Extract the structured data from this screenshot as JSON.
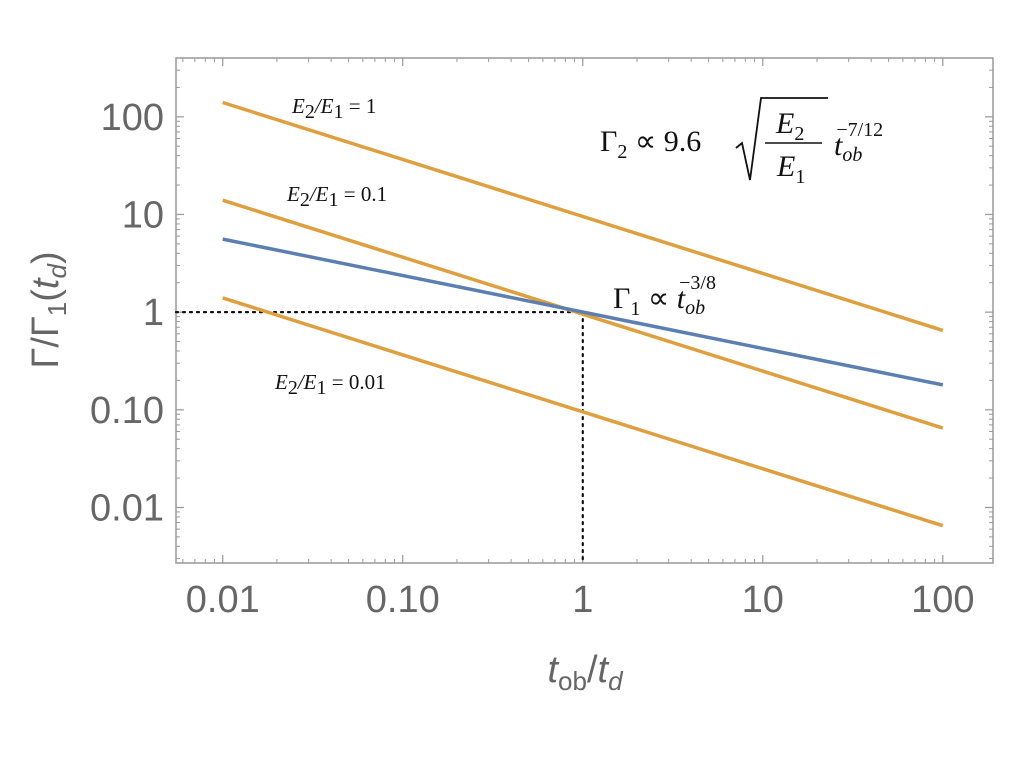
{
  "chart_data": {
    "type": "line",
    "xscale": "log",
    "yscale": "log",
    "xlabel": "t_ob/t_d",
    "ylabel": "Γ/Γ_1(t_d)",
    "xlim": [
      0.0055,
      190
    ],
    "ylim": [
      0.0027,
      400
    ],
    "x_ticks": [
      {
        "value": 0.01,
        "label": "0.01"
      },
      {
        "value": 0.1,
        "label": "0.10"
      },
      {
        "value": 1,
        "label": "1"
      },
      {
        "value": 10,
        "label": "10"
      },
      {
        "value": 100,
        "label": "100"
      }
    ],
    "y_ticks": [
      {
        "value": 0.01,
        "label": "0.01"
      },
      {
        "value": 0.1,
        "label": "0.10"
      },
      {
        "value": 1,
        "label": "1"
      },
      {
        "value": 10,
        "label": "10"
      },
      {
        "value": 100,
        "label": "100"
      }
    ],
    "grid": false,
    "series": [
      {
        "color": "#e09f3e",
        "exponent": -0.5833,
        "amplitude": 9.6,
        "x": [
          0.01,
          100
        ],
        "y": [
          140,
          0.65
        ]
      },
      {
        "color": "#e09f3e",
        "exponent": -0.5833,
        "amplitude": 0.96,
        "x": [
          0.01,
          100
        ],
        "y": [
          14,
          0.065
        ]
      },
      {
        "color": "#e09f3e",
        "exponent": -0.5833,
        "amplitude": 0.096,
        "x": [
          0.01,
          100
        ],
        "y": [
          1.4,
          0.0065
        ]
      },
      {
        "color": "#5b7fb0",
        "exponent": -0.375,
        "amplitude": 1,
        "x": [
          0.01,
          100
        ],
        "y": [
          5.6,
          0.18
        ]
      }
    ],
    "reference_lines": {
      "x": 1,
      "y": 1,
      "style": "dotted"
    },
    "annotations": {
      "e_ratio_1": {
        "lhs": "E",
        "lhs_sub": "2",
        "sep": "/E",
        "rhs_sub": "1",
        "rest": " = 1",
        "x": 0.02,
        "y": 150
      },
      "e_ratio_01": {
        "lhs": "E",
        "lhs_sub": "2",
        "sep": "/E",
        "rhs_sub": "1",
        "rest": " = 0.1",
        "x": 0.02,
        "y": 15
      },
      "e_ratio_001": {
        "lhs": "E",
        "lhs_sub": "2",
        "sep": "/E",
        "rhs_sub": "1",
        "rest": " = 0.01",
        "x": 0.02,
        "y": 0.14
      },
      "gamma2_formula": {
        "gamma": "Γ",
        "sub": "2",
        "prop": " ∝ 9.6",
        "num": "E",
        "num_sub": "2",
        "den": "E",
        "den_sub": "1",
        "t": "t",
        "t_sub": "ob",
        "t_exp": "−7/12",
        "x": 1,
        "y": 100
      },
      "gamma1_formula": {
        "gamma": "Γ",
        "sub": "1",
        "prop": " ∝ ",
        "t": "t",
        "t_sub": "ob",
        "t_exp": "−3/8",
        "x": 1.5,
        "y": 1.05
      }
    },
    "colors": {
      "axis": "#999999",
      "tick_text": "#666666",
      "reference": "#111111"
    }
  }
}
